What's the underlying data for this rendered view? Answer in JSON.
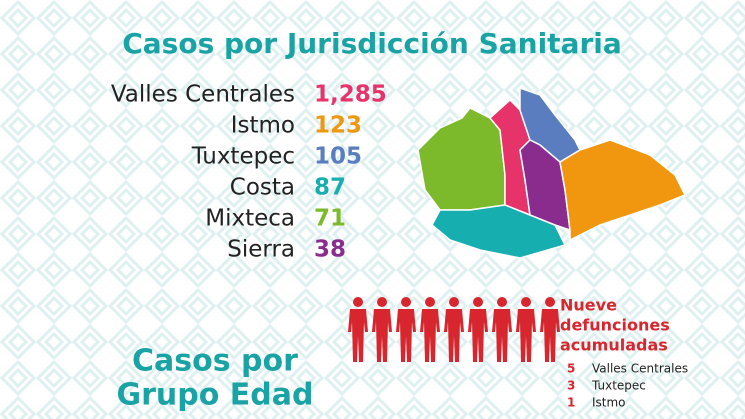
{
  "title": "Casos por Jurisdicción Sanitaria",
  "jurisdictions": [
    {
      "name": "Valles Centrales",
      "cases": "1,285",
      "color": "#e6336a"
    },
    {
      "name": "Istmo",
      "cases": "123",
      "color": "#f0960f"
    },
    {
      "name": "Tuxtepec",
      "cases": "105",
      "color": "#5a7dbf"
    },
    {
      "name": "Costa",
      "cases": "87",
      "color": "#17aeb0"
    },
    {
      "name": "Mixteca",
      "cases": "71",
      "color": "#7cba2c"
    },
    {
      "name": "Sierra",
      "cases": "38",
      "color": "#8a2b8e"
    }
  ],
  "deaths": {
    "title": [
      "Nueve",
      "defunciones",
      "acumuladas"
    ],
    "items": [
      {
        "count": 5,
        "name": "Valles Centrales"
      },
      {
        "count": 3,
        "name": "Tuxtepec"
      },
      {
        "count": 1,
        "name": "Istmo"
      }
    ]
  },
  "age_title": [
    "Casos por",
    "Grupo Edad"
  ]
}
